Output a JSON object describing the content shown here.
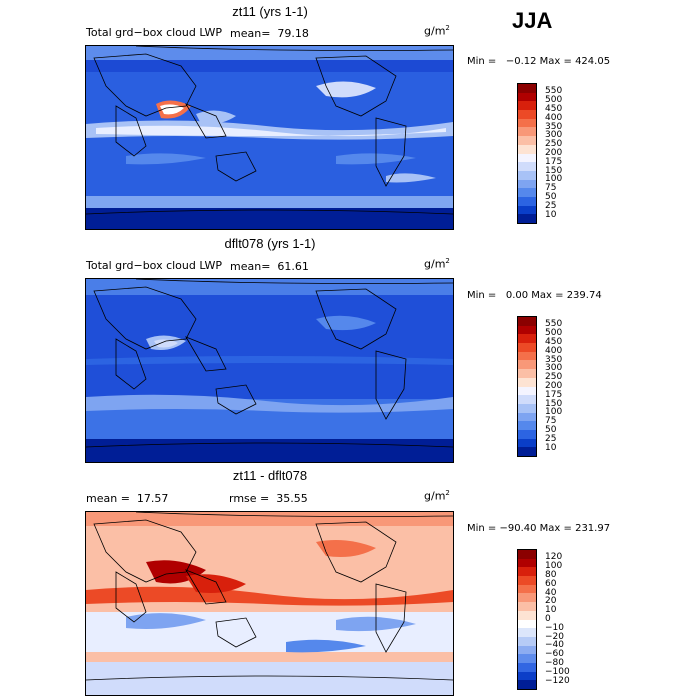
{
  "season": "JJA",
  "units": "g/m",
  "units_sup": "2",
  "panels": [
    {
      "title": "zt11 (yrs 1-1)",
      "varname": "Total grd−box cloud LWP",
      "stat": "mean=  79.18",
      "minmax": "Min =   −0.12 Max = 424.05",
      "ticks": [
        "550",
        "500",
        "450",
        "400",
        "350",
        "300",
        "250",
        "200",
        "175",
        "150",
        "100",
        "75",
        "50",
        "25",
        "10"
      ],
      "colors": [
        "#8b0000",
        "#b00000",
        "#d8200c",
        "#ec4a26",
        "#f4704a",
        "#f89878",
        "#fbbfa6",
        "#fde3d3",
        "#f4f4ff",
        "#d0dcfb",
        "#a8c2f6",
        "#7ea4f1",
        "#5588ec",
        "#2c64e2",
        "#0a3ec8",
        "#001e96"
      ]
    },
    {
      "title": "dflt078 (yrs 1-1)",
      "varname": "Total grd−box cloud LWP",
      "stat": "mean=  61.61",
      "minmax": "Min =   0.00 Max = 239.74",
      "ticks": [
        "550",
        "500",
        "450",
        "400",
        "350",
        "300",
        "250",
        "200",
        "175",
        "150",
        "100",
        "75",
        "50",
        "25",
        "10"
      ],
      "colors": [
        "#8b0000",
        "#b00000",
        "#d8200c",
        "#ec4a26",
        "#f4704a",
        "#f89878",
        "#fbbfa6",
        "#fde3d3",
        "#f4f4ff",
        "#d0dcfb",
        "#a8c2f6",
        "#7ea4f1",
        "#5588ec",
        "#2c64e2",
        "#0a3ec8",
        "#001e96"
      ]
    },
    {
      "title": "zt11 - dflt078",
      "mean": "mean =  17.57",
      "rmse": "rmse =  35.55",
      "minmax": "Min = −90.40 Max = 231.97",
      "ticks": [
        "120",
        "100",
        "80",
        "60",
        "40",
        "20",
        "10",
        "0",
        "−10",
        "−20",
        "−40",
        "−60",
        "−80",
        "−100",
        "−120"
      ],
      "colors": [
        "#8b0000",
        "#b00000",
        "#d8200c",
        "#ec4a26",
        "#f4704a",
        "#f89878",
        "#fbbfa6",
        "#fde3d3",
        "#ffffff",
        "#dce6fb",
        "#b6cbf6",
        "#8cacf1",
        "#5f8cec",
        "#3266e2",
        "#0c3ec8",
        "#001e96"
      ]
    }
  ]
}
